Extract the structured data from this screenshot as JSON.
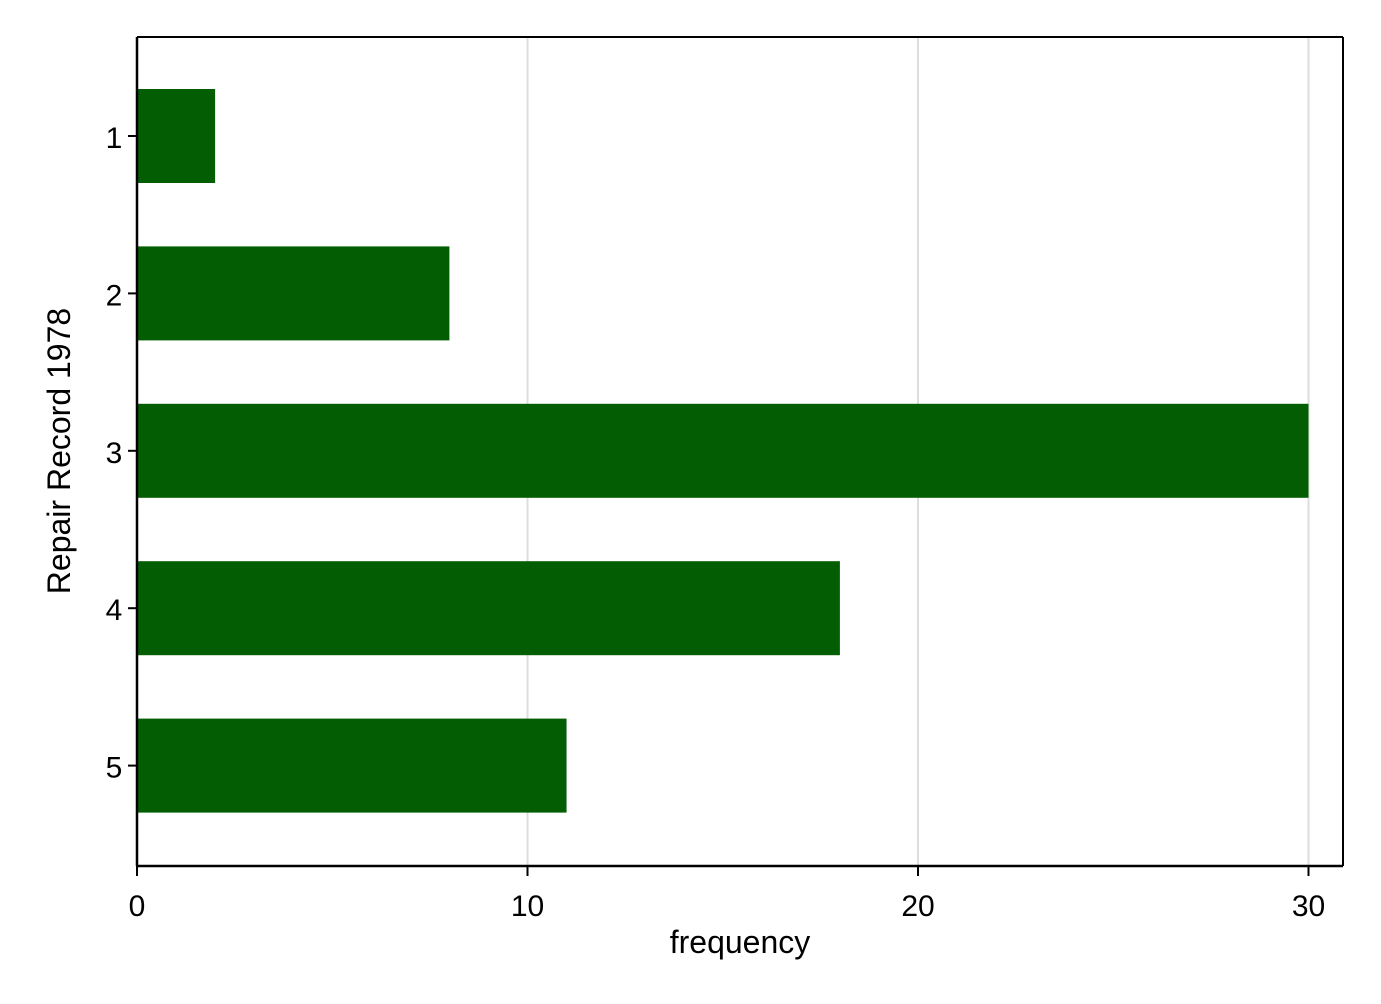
{
  "chart_data": {
    "type": "bar",
    "orientation": "horizontal",
    "title": "",
    "xlabel": "frequency",
    "ylabel": "Repair Record 1978",
    "categories": [
      "1",
      "2",
      "3",
      "4",
      "5"
    ],
    "values": [
      2,
      8,
      30,
      18,
      11
    ],
    "xlim": [
      0,
      31
    ],
    "xticks": [
      0,
      10,
      20,
      30
    ],
    "grid": true,
    "legend": "none",
    "colors": {
      "bar": "#035E03",
      "grid": "#DDDDDD",
      "axis": "#000000",
      "background": "#FFFFFF"
    }
  }
}
